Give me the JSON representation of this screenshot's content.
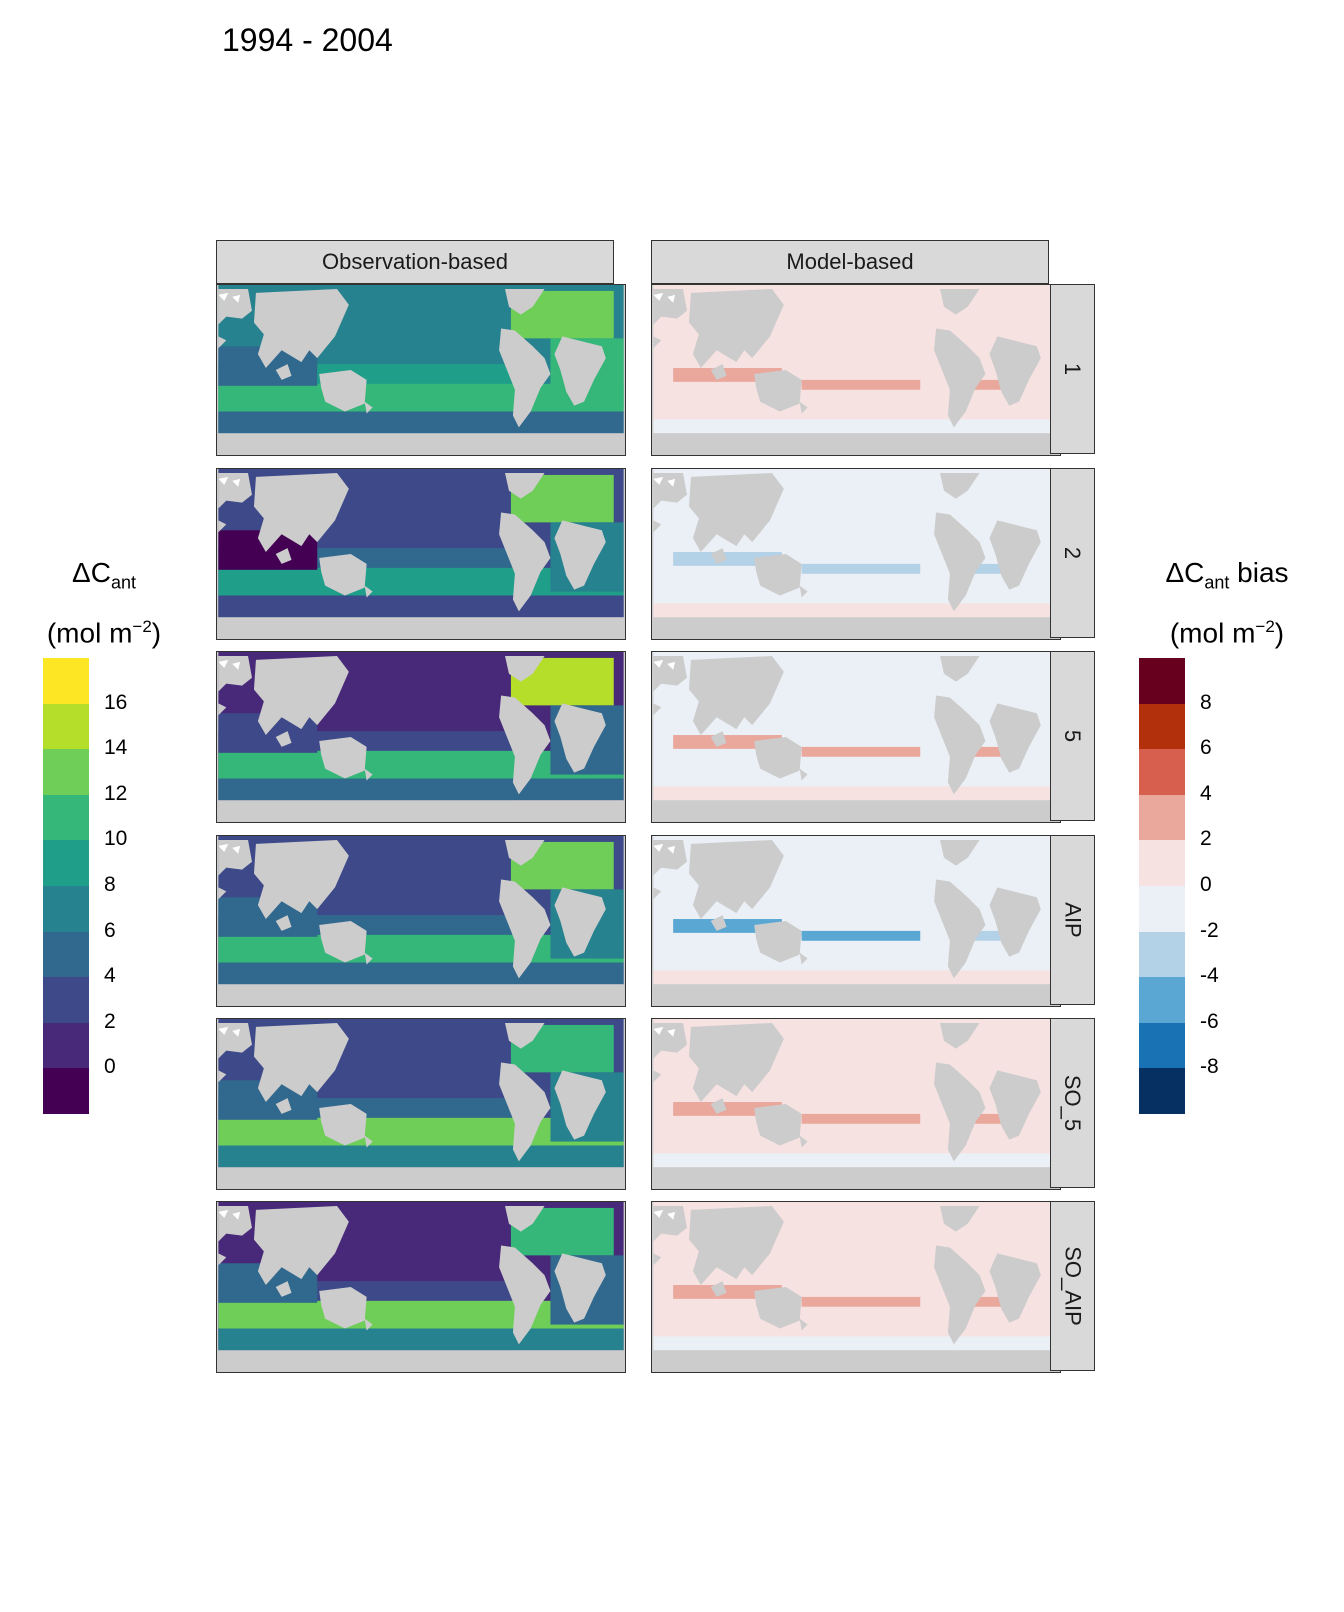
{
  "title": "1994 - 2004",
  "chart_data": {
    "type": "heatmap",
    "title": "1994 - 2004",
    "columns": [
      "Observation-based",
      "Model-based"
    ],
    "rows": [
      "1",
      "2",
      "5",
      "AIP",
      "SO_5",
      "SO_AIP"
    ],
    "legends": {
      "left": {
        "title_main": "ΔC",
        "title_sub": "ant",
        "units_prefix": "(mol m",
        "units_sup": "−2",
        "units_suffix": ")",
        "ticks": [
          "16",
          "14",
          "12",
          "10",
          "8",
          "6",
          "4",
          "2",
          "0"
        ],
        "colors": [
          "#fde725",
          "#b5de2b",
          "#6ece58",
          "#35b779",
          "#1f9e89",
          "#26828e",
          "#31688e",
          "#3e4989",
          "#482878",
          "#440154"
        ]
      },
      "right": {
        "title_main": "ΔC",
        "title_sub": "ant",
        "title_suffix": " bias",
        "units_prefix": "(mol m",
        "units_sup": "−2",
        "units_suffix": ")",
        "ticks": [
          "8",
          "6",
          "4",
          "2",
          "0",
          "-2",
          "-4",
          "-6",
          "-8"
        ],
        "colors": [
          "#67001f",
          "#b2300b",
          "#d6604d",
          "#eaa89d",
          "#f7e2e2",
          "#ebf0f6",
          "#b3d1e7",
          "#5aa7d3",
          "#1872b4",
          "#053061"
        ]
      }
    },
    "panel_levels": {
      "observation": {
        "1": {
          "north_pacific": 8,
          "south_bands": 12,
          "atlantic_north": 14,
          "indian": 6
        },
        "2": {
          "north_pacific": 5,
          "south_bands": 11,
          "atlantic_north": 15,
          "indian": 1
        },
        "5": {
          "north_pacific": 3,
          "south_bands": 13,
          "atlantic_north": 16,
          "indian": 5
        },
        "AIP": {
          "north_pacific": 4,
          "south_bands": 12,
          "atlantic_north": 15,
          "indian": 6
        },
        "SO_5": {
          "north_pacific": 4,
          "south_bands": 15,
          "atlantic_north": 13,
          "indian": 6
        },
        "SO_AIP": {
          "north_pacific": 3,
          "south_bands": 14,
          "atlantic_north": 13,
          "indian": 6
        }
      },
      "model_bias": {
        "1": {
          "background": 0.5,
          "band_bias": 3
        },
        "2": {
          "background": -0.5,
          "band_bias": -3
        },
        "5": {
          "background": -0.5,
          "band_bias": 3
        },
        "AIP": {
          "background": -0.5,
          "band_bias": -4
        },
        "SO_5": {
          "background": 0.5,
          "band_bias": 3
        },
        "SO_AIP": {
          "background": 0.5,
          "band_bias": 3
        }
      }
    }
  }
}
